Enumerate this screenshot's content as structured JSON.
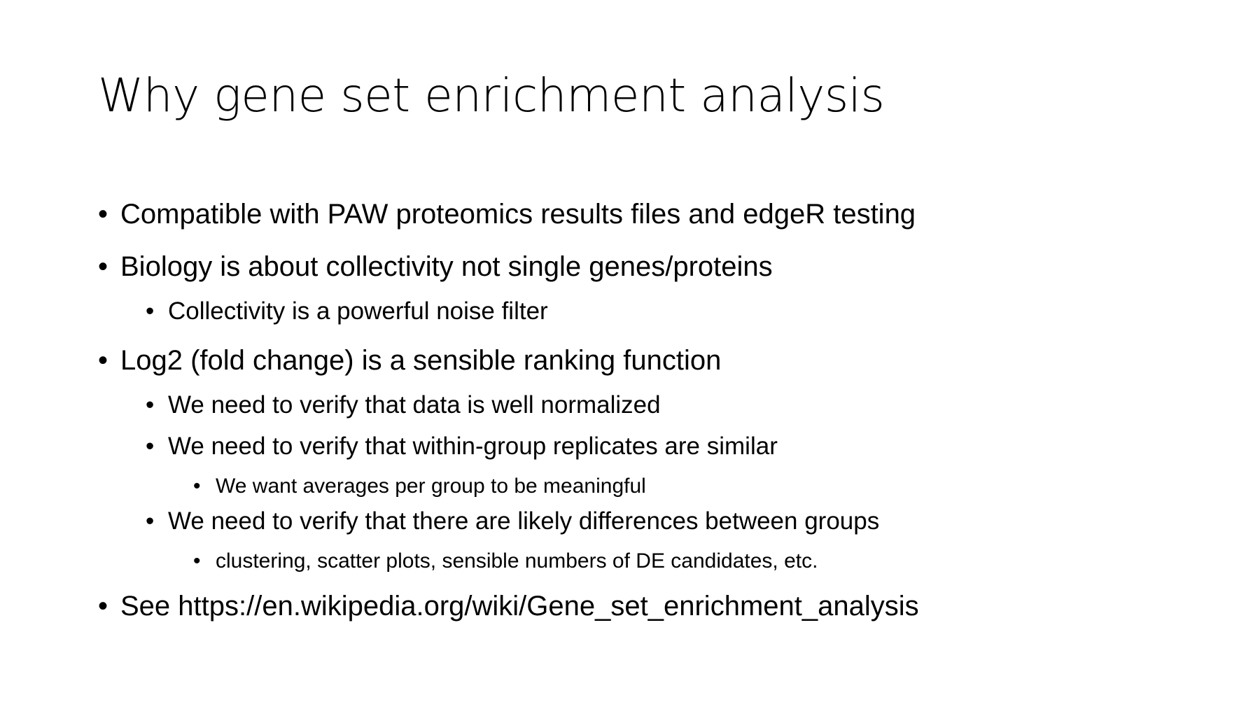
{
  "slide": {
    "title": "Why gene set enrichment analysis",
    "bullet_glyph": "•",
    "bullets": [
      {
        "level": 1,
        "text": "Compatible with PAW proteomics results files and edgeR testing"
      },
      {
        "level": 1,
        "text": "Biology is about collectivity not single genes/proteins"
      },
      {
        "level": 2,
        "text": "Collectivity is a powerful noise filter"
      },
      {
        "level": 1,
        "text": "Log2 (fold change) is a sensible ranking function"
      },
      {
        "level": 2,
        "text": "We need to verify that data is well normalized"
      },
      {
        "level": 2,
        "text": "We need to verify that within-group replicates are similar"
      },
      {
        "level": 3,
        "text": "We want averages per group to be meaningful"
      },
      {
        "level": 2,
        "text": "We need to verify that there are likely differences between groups"
      },
      {
        "level": 3,
        "text": "clustering, scatter plots, sensible numbers of DE candidates, etc."
      },
      {
        "level": 1,
        "text": "See https://en.wikipedia.org/wiki/Gene_set_enrichment_analysis"
      }
    ]
  }
}
